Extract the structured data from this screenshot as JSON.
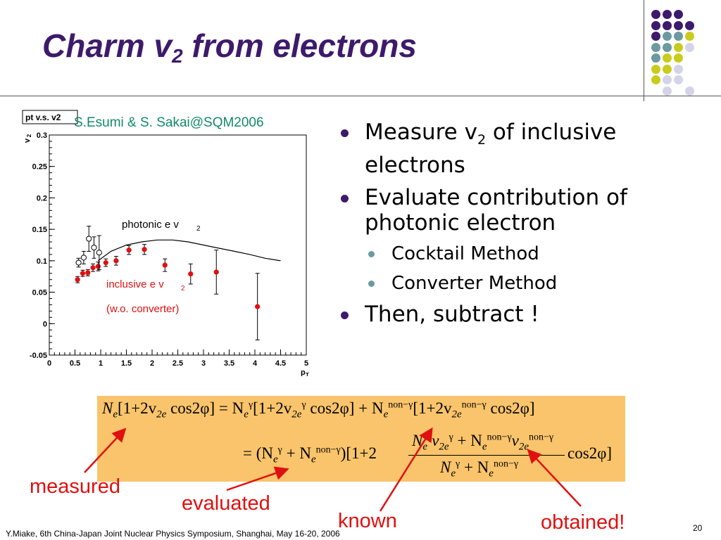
{
  "slide": {
    "title_main": "Charm v",
    "title_sub": "2",
    "title_rest": " from electrons",
    "credit": "S.Esumi & S. Sakai@SQM2006",
    "footer": "Y.Miake, 6th China-Japan Joint Nuclear Physics Symposium, Shanghai, May 16-20, 2006",
    "page_number": "20"
  },
  "bullets": [
    {
      "pre": "Measure v",
      "sub": "2",
      "post": " of inclusive electrons"
    },
    {
      "pre": "Evaluate contribution of photonic electron",
      "sub": "",
      "post": ""
    },
    {
      "pre": "Then, subtract !",
      "sub": "",
      "post": ""
    }
  ],
  "sub_bullets": [
    "Cocktail Method",
    "Converter Method"
  ],
  "annotations": {
    "measured": "measured",
    "evaluated": "evaluated",
    "known": "known",
    "obtained": "obtained!"
  },
  "decor_colors": {
    "purple": "#3d1a6b",
    "teal": "#6b9aa0",
    "yellow": "#c8cc1c",
    "lavender": "#d4d4e8"
  },
  "chart_data": {
    "type": "scatter",
    "title": "pt v.s. v2",
    "xlabel": "p_T",
    "ylabel": "v_2",
    "xlim": [
      0,
      5
    ],
    "ylim": [
      -0.05,
      0.3
    ],
    "xticks": [
      "0",
      "0.5",
      "1",
      "1.5",
      "2",
      "2.5",
      "3",
      "3.5",
      "4",
      "4.5",
      "5"
    ],
    "yticks": [
      "-0.05",
      "0",
      "0.05",
      "0.1",
      "0.15",
      "0.2",
      "0.25",
      "0.3"
    ],
    "line_label_pre": "photonic e v",
    "line_label_sub": "2",
    "inclusive_label_pre": "inclusive e v",
    "inclusive_label_sub": "2",
    "inclusive_label_note": "(w.o. converter)",
    "series": [
      {
        "kind": "points-filled",
        "color": "#e01010",
        "points": [
          {
            "x": 0.55,
            "y": 0.07,
            "err": 0.005
          },
          {
            "x": 0.65,
            "y": 0.08,
            "err": 0.005
          },
          {
            "x": 0.75,
            "y": 0.081,
            "err": 0.005
          },
          {
            "x": 0.85,
            "y": 0.089,
            "err": 0.006
          },
          {
            "x": 0.95,
            "y": 0.091,
            "err": 0.007
          },
          {
            "x": 1.1,
            "y": 0.097,
            "err": 0.006
          },
          {
            "x": 1.3,
            "y": 0.1,
            "err": 0.007
          },
          {
            "x": 1.55,
            "y": 0.117,
            "err": 0.007
          },
          {
            "x": 1.85,
            "y": 0.118,
            "err": 0.008
          },
          {
            "x": 2.25,
            "y": 0.093,
            "err": 0.01
          },
          {
            "x": 2.75,
            "y": 0.079,
            "err": 0.016
          },
          {
            "x": 3.25,
            "y": 0.082,
            "err": 0.035
          },
          {
            "x": 4.05,
            "y": 0.027,
            "err": 0.053
          }
        ]
      },
      {
        "kind": "points-open",
        "color": "#000000",
        "points": [
          {
            "x": 0.57,
            "y": 0.097,
            "err": 0.007
          },
          {
            "x": 0.67,
            "y": 0.105,
            "err": 0.01
          },
          {
            "x": 0.77,
            "y": 0.135,
            "err": 0.02
          },
          {
            "x": 0.87,
            "y": 0.121,
            "err": 0.017
          },
          {
            "x": 0.97,
            "y": 0.113,
            "err": 0.027
          }
        ]
      },
      {
        "kind": "line",
        "color": "#000000",
        "points": [
          {
            "x": 0.95,
            "y": 0.1
          },
          {
            "x": 1.2,
            "y": 0.115
          },
          {
            "x": 1.5,
            "y": 0.125
          },
          {
            "x": 1.8,
            "y": 0.13
          },
          {
            "x": 2.1,
            "y": 0.133
          },
          {
            "x": 2.4,
            "y": 0.133
          },
          {
            "x": 2.7,
            "y": 0.13
          },
          {
            "x": 3.0,
            "y": 0.125
          },
          {
            "x": 3.3,
            "y": 0.12
          },
          {
            "x": 3.6,
            "y": 0.115
          },
          {
            "x": 3.9,
            "y": 0.11
          },
          {
            "x": 4.2,
            "y": 0.104
          },
          {
            "x": 4.5,
            "y": 0.1
          }
        ]
      }
    ]
  },
  "formula": {
    "top_lhs_N": "N",
    "top_lhs_e": "e",
    "top_lhs_rest": "[1+2v",
    "top_lhs_2e": "2e",
    "top_lhs_cos": " cos2φ] = N",
    "gamma": "γ",
    "top_mid": "[1+2v",
    "top_mid_cos": " cos2φ] + N",
    "nongamma": "non−γ",
    "top_end": "[1+2v",
    "top_end_cos": " cos2φ]",
    "eq2_left": "= (N",
    "eq2_plus": " + N",
    "eq2_mid": ")[1+2",
    "eq2_end": "cos2φ]",
    "frac_num_a": "N",
    "frac_num_v": "v",
    "frac_num_plus": " + N",
    "frac_num_v2": "v",
    "frac_den_a": "N",
    "frac_den_plus": " + N"
  }
}
